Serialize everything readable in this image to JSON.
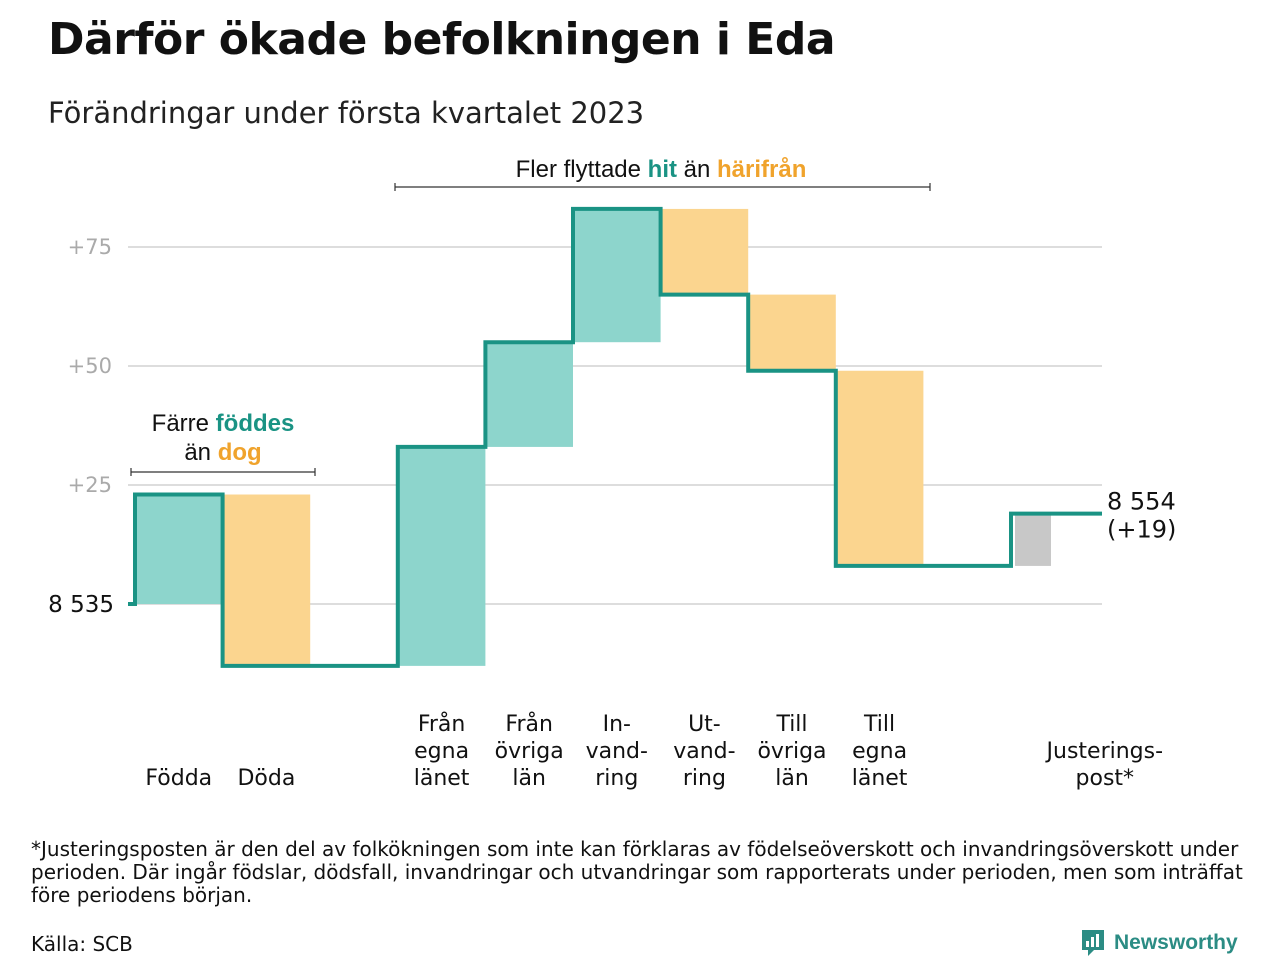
{
  "header": {
    "title": "Därför ökade befolkningen i Eda",
    "subtitle": "Förändringar under första kvartalet 2023"
  },
  "chart_data": {
    "type": "waterfall",
    "start_value": 8535,
    "start_label": "8 535",
    "end_label_line1": "8 554",
    "end_label_line2": "(+19)",
    "y_ticks": [
      {
        "value": 75,
        "label": "+75"
      },
      {
        "value": 50,
        "label": "+50"
      },
      {
        "value": 25,
        "label": "+25"
      }
    ],
    "steps": [
      {
        "label_lines": [
          "Födda"
        ],
        "delta": 23,
        "kind": "in"
      },
      {
        "label_lines": [
          "Döda"
        ],
        "delta": -36,
        "kind": "out"
      },
      {
        "label_lines": [],
        "delta": 0,
        "kind": "gap"
      },
      {
        "label_lines": [
          "Från",
          "egna",
          "länet"
        ],
        "delta": 46,
        "kind": "in"
      },
      {
        "label_lines": [
          "Från",
          "övriga",
          "län"
        ],
        "delta": 22,
        "kind": "in"
      },
      {
        "label_lines": [
          "In-",
          "vand-",
          "ring"
        ],
        "delta": 28,
        "kind": "in"
      },
      {
        "label_lines": [
          "Ut-",
          "vand-",
          "ring"
        ],
        "delta": -18,
        "kind": "out"
      },
      {
        "label_lines": [
          "Till",
          "övriga",
          "län"
        ],
        "delta": -16,
        "kind": "out"
      },
      {
        "label_lines": [
          "Till",
          "egna",
          "länet"
        ],
        "delta": -41,
        "kind": "out"
      },
      {
        "label_lines": [],
        "delta": 0,
        "kind": "gap"
      },
      {
        "label_lines": [
          "Justerings-",
          "post*"
        ],
        "delta": 11,
        "kind": "adjust"
      }
    ],
    "annotations": {
      "births": {
        "prefix": "Färre ",
        "highlight1": "föddes",
        "line2_prefix": "än ",
        "highlight2": "dog"
      },
      "migration": {
        "prefix": "Fler flyttade ",
        "highlight1": "hit",
        "middle": " än ",
        "highlight2": "härifrån"
      }
    },
    "colors": {
      "line": "#1a9384",
      "in_fill": "#8dd5cc",
      "out_fill": "#fbd58f",
      "adjust_fill": "#c8c8c8",
      "teal_text": "#1a9384",
      "orange_text": "#f0a32c",
      "grid": "#dddddd",
      "tick_text": "#aaaaaa"
    }
  },
  "footnote": "*Justeringsposten är den del av folkökningen som inte kan förklaras av födelseöverskott och invandringsöverskott under perioden. Där ingår födslar, dödsfall, invandringar och utvandringar som rapporterats under perioden, men som inträffat före periodens början.",
  "source": "Källa: SCB",
  "logo": {
    "text": "Newsworthy",
    "icon": "newsworthy-logo-icon"
  }
}
